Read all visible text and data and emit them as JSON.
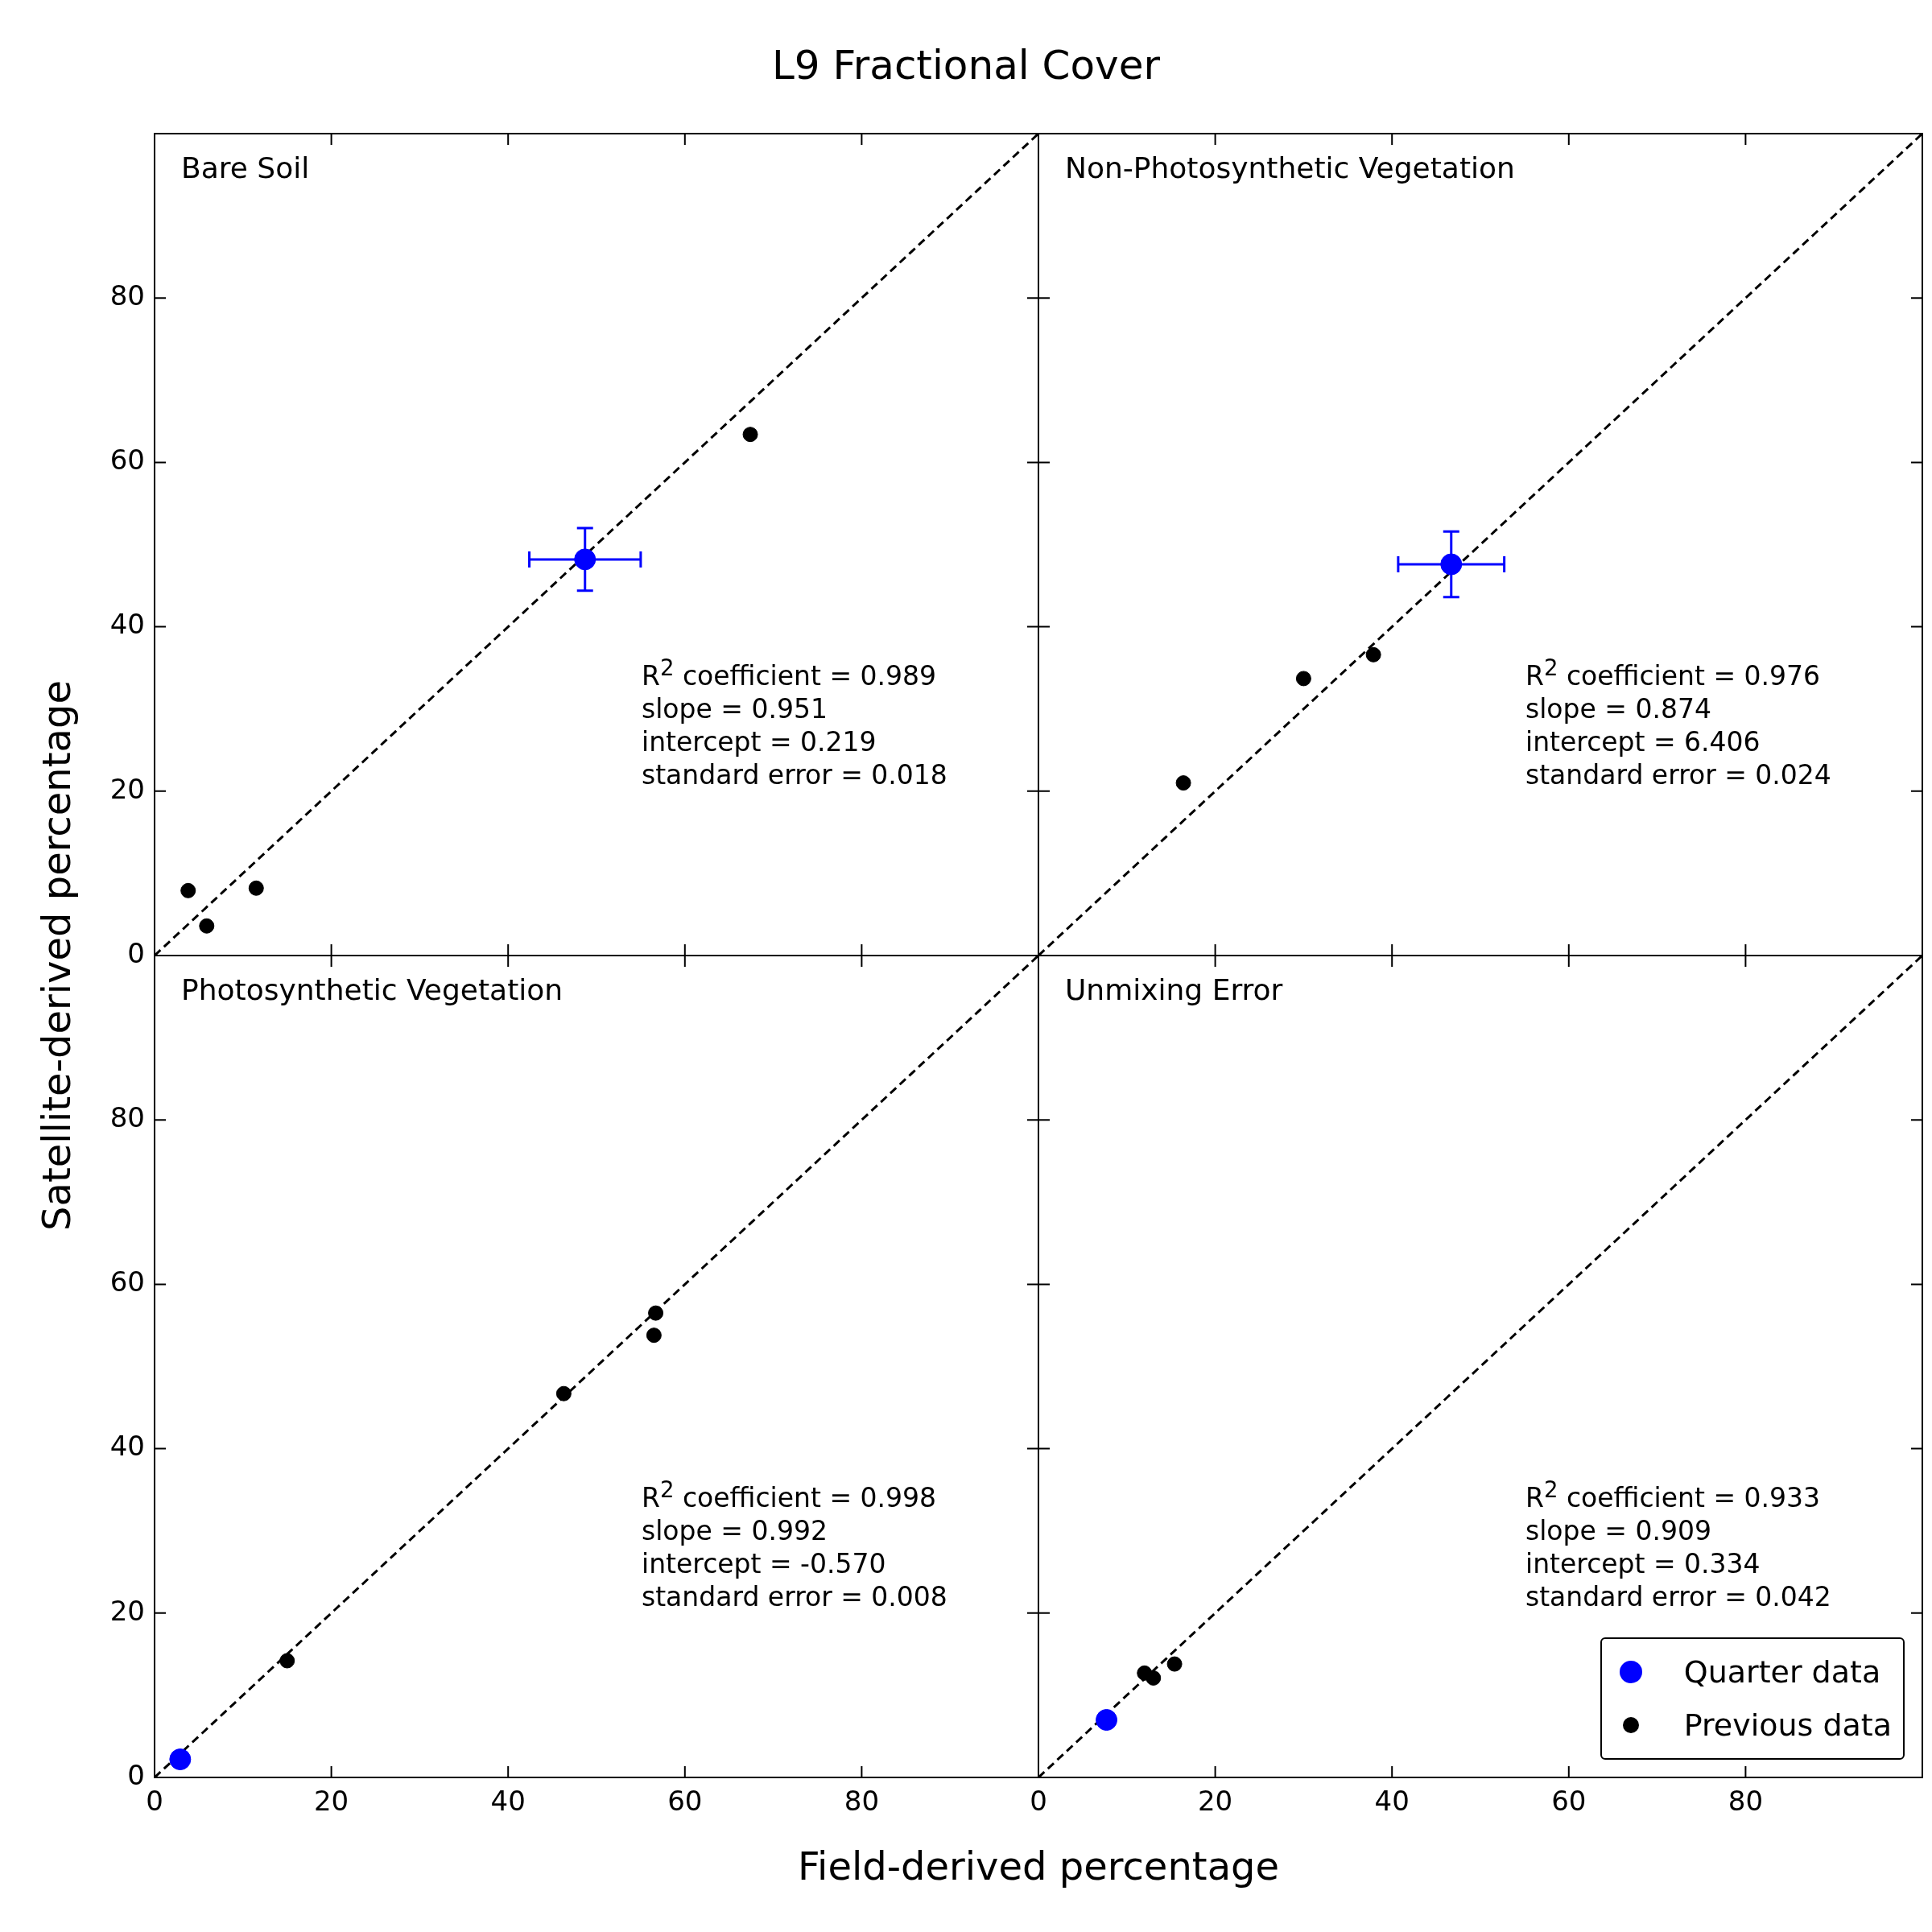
{
  "chart_data": [
    {
      "type": "scatter",
      "title": "L9 Fractional Cover",
      "ylabel": "Satellite-derived percentage",
      "marker": "circle",
      "tick_labels": "y",
      "xlim": [
        0,
        100
      ],
      "ylim": [
        0,
        100
      ],
      "xticks": [
        0,
        20,
        40,
        60,
        80
      ],
      "yticks": [
        0,
        20,
        40,
        60,
        80
      ],
      "annotations": [
        "Bare Soil",
        "R$^{2}$ coefficient = 0.989",
        "slope = 0.951",
        "intercept = 0.219",
        "standard error = 0.018"
      ],
      "series": [
        {
          "type": "scatter",
          "color": "#0000ff",
          "x": [
            48.7
          ],
          "values": [
            48.2
          ],
          "errors": [
            3.8
          ],
          "xerrors": [
            6.3
          ]
        },
        {
          "type": "scatter",
          "color": "#000000",
          "x": [
            3.8,
            5.9,
            11.5,
            67.4
          ],
          "values": [
            7.9,
            3.6,
            8.2,
            63.4
          ]
        },
        {
          "type": "line",
          "color": "#000000",
          "line_style": "dashed",
          "marker": "none",
          "x": [
            0,
            100
          ],
          "values": [
            0,
            100
          ]
        }
      ]
    },
    {
      "type": "scatter",
      "marker": "circle",
      "tick_labels": false,
      "xlim": [
        0,
        100
      ],
      "ylim": [
        0,
        100
      ],
      "xticks": [
        0,
        20,
        40,
        60,
        80
      ],
      "yticks": [
        0,
        20,
        40,
        60,
        80
      ],
      "annotations": [
        "Non-Photosynthetic Vegetation",
        "R$^{2}$ coefficient = 0.976",
        "slope = 0.874",
        "intercept = 6.406",
        "standard error = 0.024"
      ],
      "series": [
        {
          "type": "scatter",
          "color": "#0000ff",
          "x": [
            46.7
          ],
          "values": [
            47.6
          ],
          "errors": [
            4.0
          ],
          "xerrors": [
            6.0
          ]
        },
        {
          "type": "scatter",
          "color": "#000000",
          "x": [
            16.4,
            30.0,
            37.9
          ],
          "values": [
            21.0,
            33.7,
            36.6
          ]
        },
        {
          "type": "line",
          "color": "#000000",
          "line_style": "dashed",
          "marker": "none",
          "x": [
            0,
            100
          ],
          "values": [
            0,
            100
          ]
        }
      ]
    },
    {
      "type": "scatter",
      "xlabel": "Field-derived percentage",
      "marker": "circle",
      "xlim": [
        0,
        100
      ],
      "ylim": [
        0,
        100
      ],
      "xticks": [
        0,
        20,
        40,
        60,
        80
      ],
      "yticks": [
        0,
        20,
        40,
        60,
        80
      ],
      "annotations": [
        "Photosynthetic Vegetation",
        "R$^{2}$ coefficient = 0.998",
        "slope = 0.992",
        "intercept = -0.570",
        "standard error = 0.008"
      ],
      "series": [
        {
          "type": "scatter",
          "color": "#0000ff",
          "x": [
            2.9
          ],
          "values": [
            2.2
          ]
        },
        {
          "type": "scatter",
          "color": "#000000",
          "x": [
            15.0,
            46.3,
            56.7,
            56.5
          ],
          "values": [
            14.2,
            46.7,
            56.5,
            53.8
          ]
        },
        {
          "type": "line",
          "color": "#000000",
          "line_style": "dashed",
          "marker": "none",
          "x": [
            0,
            100
          ],
          "values": [
            0,
            100
          ]
        }
      ]
    },
    {
      "type": "scatter",
      "marker": "circle",
      "tick_labels": "x",
      "legend": "bottom right",
      "xlim": [
        0,
        100
      ],
      "ylim": [
        0,
        100
      ],
      "xticks": [
        0,
        20,
        40,
        60,
        80
      ],
      "yticks": [
        0,
        20,
        40,
        60,
        80
      ],
      "annotations": [
        "Unmixing Error",
        "R$^{2}$ coefficient = 0.933",
        "slope = 0.909",
        "intercept = 0.334",
        "standard error = 0.042"
      ],
      "series": [
        {
          "type": "scatter",
          "name": "Quarter data",
          "color": "#0000ff",
          "x": [
            7.7
          ],
          "values": [
            7.0
          ]
        },
        {
          "type": "scatter",
          "name": "Previous data",
          "color": "#000000",
          "x": [
            12.0,
            13.0,
            15.4
          ],
          "values": [
            12.7,
            12.1,
            13.8
          ]
        },
        {
          "type": "line",
          "color": "#000000",
          "line_style": "dashed",
          "marker": "none",
          "x": [
            0,
            100
          ],
          "values": [
            0,
            100
          ]
        }
      ]
    }
  ]
}
